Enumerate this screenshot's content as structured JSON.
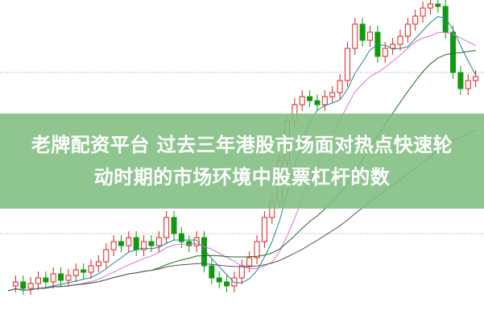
{
  "headline": {
    "line1": "老牌配资平台 过去三年港股市场面对热点快速轮",
    "line2": "动时期的市场环境中股票杠杆的数"
  },
  "colors": {
    "up": "#e02020",
    "down": "#109a10",
    "banner": "#80be80",
    "grid": "#999999"
  },
  "chart_kind": "candlestick with moving averages"
}
